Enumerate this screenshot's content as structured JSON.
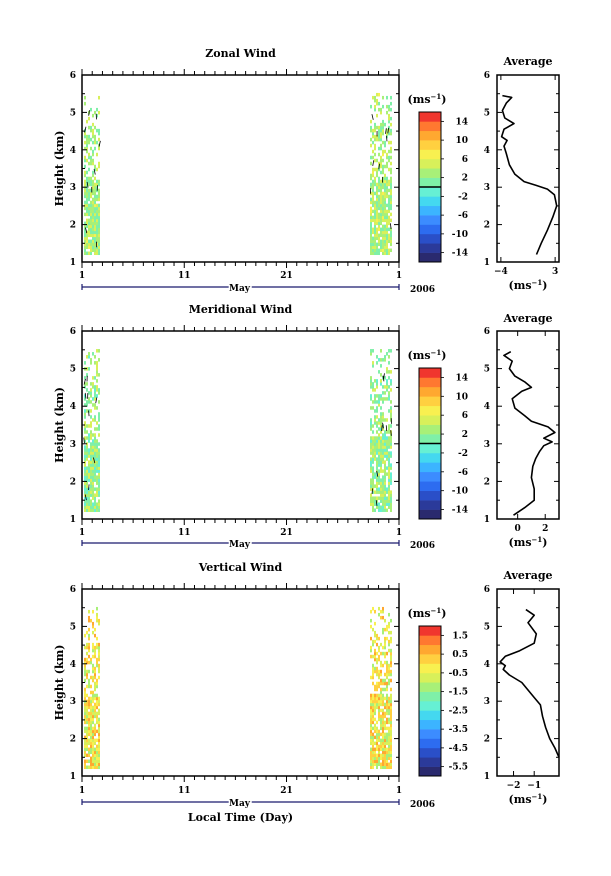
{
  "chart_data": [
    {
      "type": "heatmap",
      "title": "Zonal Wind",
      "ylabel": "Height (km)",
      "ylim": [
        1,
        6
      ],
      "yticks": [
        "1",
        "2",
        "3",
        "4",
        "5",
        "6"
      ],
      "xticks": [
        "1",
        "11",
        "21",
        "1"
      ],
      "month_label": "May",
      "year_label": "2006",
      "colorbar": {
        "unit": "(ms⁻¹)",
        "labels": [
          "14",
          "10",
          "6",
          "2",
          "-2",
          "-6",
          "-10",
          "-14"
        ],
        "range": [
          -16,
          16
        ],
        "zero_line": true
      },
      "profile": {
        "title": "Average",
        "xlabel": "(ms⁻¹)",
        "xlim": [
          -4.5,
          3.5
        ],
        "xticks": [
          "-4",
          "3"
        ],
        "ylim": [
          1,
          6
        ],
        "yticks": [
          "1",
          "2",
          "3",
          "4",
          "5",
          "6"
        ],
        "points": [
          [
            0.6,
            1.2
          ],
          [
            1.2,
            1.5
          ],
          [
            2.0,
            1.85
          ],
          [
            2.7,
            2.2
          ],
          [
            3.2,
            2.5
          ],
          [
            2.9,
            2.8
          ],
          [
            2.0,
            2.95
          ],
          [
            0.5,
            3.05
          ],
          [
            -1.0,
            3.15
          ],
          [
            -2.2,
            3.35
          ],
          [
            -2.9,
            3.6
          ],
          [
            -3.3,
            3.9
          ],
          [
            -3.6,
            4.1
          ],
          [
            -3.2,
            4.25
          ],
          [
            -3.9,
            4.35
          ],
          [
            -3.6,
            4.55
          ],
          [
            -2.3,
            4.7
          ],
          [
            -3.5,
            4.85
          ],
          [
            -3.8,
            5.05
          ],
          [
            -3.3,
            5.25
          ],
          [
            -2.6,
            5.4
          ],
          [
            -3.8,
            5.45
          ]
        ]
      }
    },
    {
      "type": "heatmap",
      "title": "Meridional Wind",
      "ylabel": "Height (km)",
      "ylim": [
        1,
        6
      ],
      "yticks": [
        "1",
        "2",
        "3",
        "4",
        "5",
        "6"
      ],
      "xticks": [
        "1",
        "11",
        "21",
        "1"
      ],
      "month_label": "May",
      "year_label": "2006",
      "colorbar": {
        "unit": "(ms⁻¹)",
        "labels": [
          "14",
          "10",
          "6",
          "2",
          "-2",
          "-6",
          "-10",
          "-14"
        ],
        "range": [
          -16,
          16
        ],
        "zero_line": true
      },
      "profile": {
        "title": "Average",
        "xlabel": "(ms⁻¹)",
        "xlim": [
          -1.5,
          3
        ],
        "xticks": [
          "0",
          "2"
        ],
        "ylim": [
          1,
          6
        ],
        "yticks": [
          "1",
          "2",
          "3",
          "4",
          "5",
          "6"
        ],
        "points": [
          [
            -0.3,
            1.1
          ],
          [
            0.5,
            1.3
          ],
          [
            1.2,
            1.5
          ],
          [
            1.2,
            1.8
          ],
          [
            1.0,
            2.1
          ],
          [
            1.1,
            2.4
          ],
          [
            1.3,
            2.6
          ],
          [
            1.6,
            2.8
          ],
          [
            1.9,
            2.95
          ],
          [
            2.5,
            3.05
          ],
          [
            1.9,
            3.15
          ],
          [
            2.7,
            3.3
          ],
          [
            2.2,
            3.45
          ],
          [
            1.0,
            3.6
          ],
          [
            0.5,
            3.75
          ],
          [
            -0.2,
            3.95
          ],
          [
            -0.4,
            4.2
          ],
          [
            0.3,
            4.4
          ],
          [
            1.0,
            4.5
          ],
          [
            0.5,
            4.65
          ],
          [
            -0.2,
            4.8
          ],
          [
            -0.6,
            5.0
          ],
          [
            -0.4,
            5.2
          ],
          [
            -1.0,
            5.35
          ],
          [
            -0.5,
            5.45
          ]
        ]
      }
    },
    {
      "type": "heatmap",
      "title": "Vertical Wind",
      "ylabel": "Height (km)",
      "xlabel": "Local Time (Day)",
      "ylim": [
        1,
        6
      ],
      "yticks": [
        "1",
        "2",
        "3",
        "4",
        "5",
        "6"
      ],
      "xticks": [
        "1",
        "11",
        "21",
        "1"
      ],
      "month_label": "May",
      "year_label": "2006",
      "colorbar": {
        "unit": "(ms⁻¹)",
        "labels": [
          "1.5",
          "0.5",
          "-0.5",
          "-1.5",
          "-2.5",
          "-3.5",
          "-4.5",
          "-5.5"
        ],
        "range": [
          -6,
          2
        ],
        "zero_line": false
      },
      "profile": {
        "title": "Average",
        "xlabel": "(ms⁻¹)",
        "xlim": [
          -2.8,
          0.2
        ],
        "xticks": [
          "-2",
          "-1"
        ],
        "ylim": [
          1,
          6
        ],
        "yticks": [
          "1",
          "2",
          "3",
          "4",
          "5",
          "6"
        ],
        "points": [
          [
            0.2,
            1.5
          ],
          [
            0.0,
            1.75
          ],
          [
            -0.25,
            2.0
          ],
          [
            -0.45,
            2.3
          ],
          [
            -0.6,
            2.6
          ],
          [
            -0.7,
            2.9
          ],
          [
            -1.0,
            3.1
          ],
          [
            -1.3,
            3.3
          ],
          [
            -1.6,
            3.5
          ],
          [
            -2.2,
            3.7
          ],
          [
            -2.5,
            3.85
          ],
          [
            -2.4,
            3.95
          ],
          [
            -2.65,
            4.05
          ],
          [
            -2.4,
            4.2
          ],
          [
            -1.7,
            4.35
          ],
          [
            -1.0,
            4.55
          ],
          [
            -0.9,
            4.8
          ],
          [
            -1.3,
            5.1
          ],
          [
            -1.0,
            5.3
          ],
          [
            -1.4,
            5.45
          ]
        ]
      }
    }
  ]
}
